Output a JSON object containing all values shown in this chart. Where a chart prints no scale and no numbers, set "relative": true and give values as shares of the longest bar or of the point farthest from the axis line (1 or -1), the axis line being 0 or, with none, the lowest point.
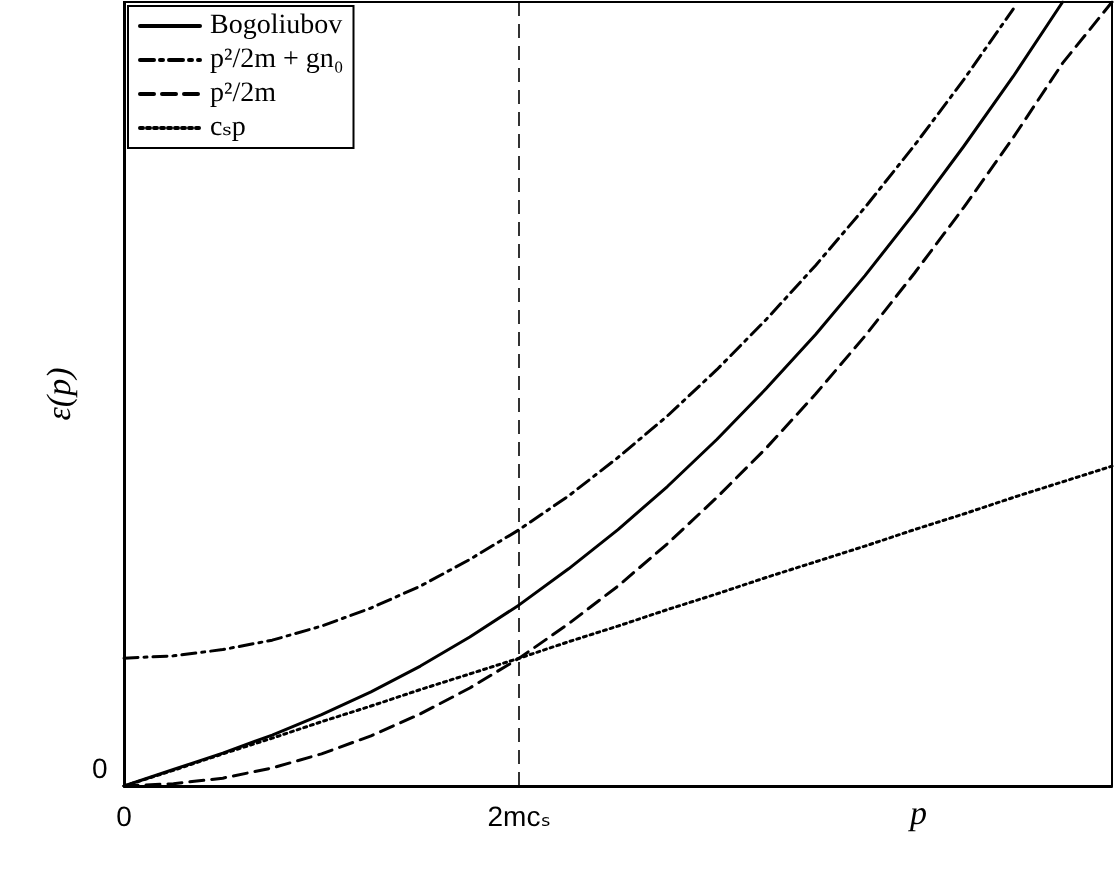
{
  "chart_data": {
    "type": "line",
    "relative": true,
    "xlabel": "p",
    "ylabel": "ε(p)",
    "annotations": [
      "0"
    ],
    "categories": [
      "0",
      null,
      null,
      null,
      null,
      null,
      null,
      null,
      "2mcₛ",
      null,
      null,
      null,
      null,
      null,
      null,
      null,
      null,
      null,
      null,
      null,
      null
    ],
    "grid": false,
    "legend": "top left",
    "marker": "none",
    "ref_lines": [
      {
        "axis": "x",
        "value": "2mcₛ",
        "color": "#000000",
        "line_style": "dashed"
      }
    ],
    "series": [
      {
        "name": "Bogoliubov",
        "color": "#000000",
        "line_style": "solid",
        "values": [
          0,
          0.021,
          0.042,
          0.065,
          0.091,
          0.12,
          0.153,
          0.19,
          0.231,
          0.277,
          0.327,
          0.382,
          0.442,
          0.507,
          0.576,
          0.651,
          0.731,
          0.816,
          0.905,
          1,
          null
        ]
      },
      {
        "name": "p²/2m + gn₀",
        "color": "#000000",
        "line_style": "dashdot",
        "values": [
          0.163,
          0.166,
          0.174,
          0.186,
          0.204,
          0.227,
          0.255,
          0.289,
          0.327,
          0.37,
          0.419,
          0.472,
          0.531,
          0.595,
          0.664,
          0.738,
          0.817,
          0.901,
          0.991,
          null,
          null
        ]
      },
      {
        "name": "p²/2m",
        "color": "#000000",
        "line_style": "dashed",
        "values": [
          0,
          0.003,
          0.01,
          0.023,
          0.041,
          0.064,
          0.092,
          0.125,
          0.163,
          0.207,
          0.255,
          0.309,
          0.368,
          0.431,
          0.5,
          0.574,
          0.654,
          0.738,
          0.827,
          0.922,
          1
        ]
      },
      {
        "name": "cₛp",
        "color": "#000000",
        "line_style": "dotted",
        "values": [
          0,
          0.02,
          0.041,
          0.061,
          0.082,
          0.102,
          0.123,
          0.143,
          0.163,
          0.184,
          0.204,
          0.225,
          0.245,
          0.266,
          0.286,
          0.306,
          0.327,
          0.347,
          0.368,
          0.388,
          0.408
        ]
      }
    ]
  }
}
